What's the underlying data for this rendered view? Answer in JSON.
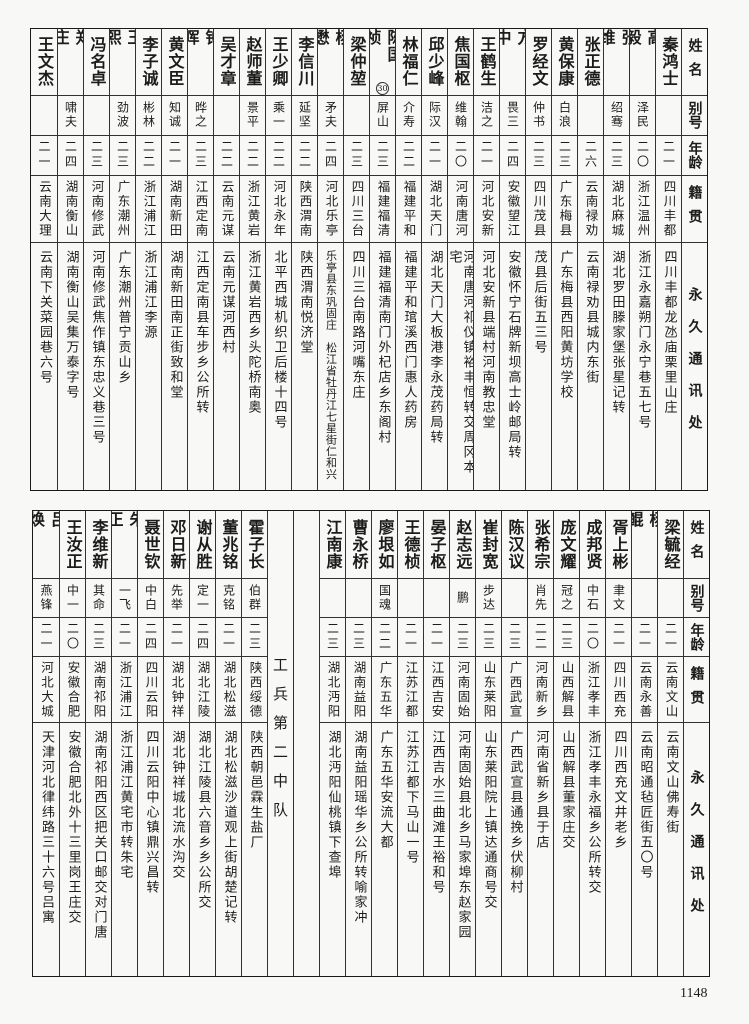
{
  "headers": {
    "name": "姓名",
    "alias": "别号",
    "age": "年龄",
    "origin": "籍贯",
    "address": "永久通讯处"
  },
  "upper": {
    "rows": [
      {
        "name": "秦鸿士",
        "alias": "",
        "age": "二一",
        "origin": "四川丰都",
        "address": "四川丰都龙氹庙栗里山庄"
      },
      {
        "name": "高毅",
        "alias": "泽民",
        "age": "二〇",
        "origin": "浙江温州",
        "address": "浙江永嘉朔门永宁巷五七号"
      },
      {
        "name": "张维",
        "alias": "绍骞",
        "age": "二三",
        "origin": "湖北麻城",
        "address": "湖北罗田滕家堡张星记转"
      },
      {
        "name": "张正德",
        "alias": "",
        "age": "二六",
        "origin": "云南禄劝",
        "address": "云南禄劝县城内东街"
      },
      {
        "name": "黄保康",
        "alias": "白浪",
        "age": "二三",
        "origin": "广东梅县",
        "address": "广东梅县西阳黄坊学校"
      },
      {
        "name": "罗经文",
        "alias": "仲书",
        "age": "二三",
        "origin": "四川茂县",
        "address": "茂县后街五三号"
      },
      {
        "name": "方中",
        "alias": "畏三",
        "age": "二四",
        "origin": "安徽望江",
        "address": "安徽怀宁石牌新坝高士岭邮局转"
      },
      {
        "name": "王鹤生",
        "alias": "洁之",
        "age": "二一",
        "origin": "河北安新",
        "address": "河北安新县端村河南教忠堂"
      },
      {
        "name": "焦国枢",
        "alias": "维翰",
        "age": "二〇",
        "origin": "河南唐河",
        "address": "河南唐河祁仪镇裕丰恒转交周冈本宅"
      },
      {
        "name": "邱少峰",
        "alias": "际汉",
        "age": "二一",
        "origin": "湖北天门",
        "address": "湖北天门大板港李永茂药局转"
      },
      {
        "name": "林福仁",
        "alias": "介寿",
        "age": "二二",
        "origin": "福建平和",
        "address": "福建平和琯溪西门惠人药房"
      },
      {
        "name": "陈国祯",
        "note": "30",
        "alias": "屏山",
        "age": "二三",
        "origin": "福建福清",
        "address": "福建福清南门外杞店乡东阁村"
      },
      {
        "name": "梁仲堃",
        "alias": "",
        "age": "二三",
        "origin": "四川三台",
        "address": "四川三台南路河嘴东庄"
      },
      {
        "name": "杨懋",
        "alias": "矛夫",
        "age": "二四",
        "origin": "河北乐亭",
        "address": "乐亭县东巩固庄　松江省牡丹江七星街仁和兴"
      },
      {
        "name": "李信川",
        "alias": "延坚",
        "age": "二二",
        "origin": "陕西渭南",
        "address": "陕西渭南悦济堂"
      },
      {
        "name": "王少卿",
        "alias": "乘一",
        "age": "二二",
        "origin": "河北永年",
        "address": "北平西城机织卫后楼十四号"
      },
      {
        "name": "赵师董",
        "alias": "景平",
        "age": "二二",
        "origin": "浙江黄岩",
        "address": "浙江黄岩西乡头陀桥南奥"
      },
      {
        "name": "吴才章",
        "alias": "",
        "age": "二二",
        "origin": "云南元谋",
        "address": "云南元谋河西村"
      },
      {
        "name": "钟晖",
        "alias": "晔之",
        "age": "二三",
        "origin": "江西定南",
        "address": "江西定南县车步乡公所转"
      },
      {
        "name": "黄文臣",
        "alias": "知诚",
        "age": "二一",
        "origin": "湖南新田",
        "address": "湖南新田南正街致和堂"
      },
      {
        "name": "李子诚",
        "alias": "彬林",
        "age": "二二",
        "origin": "浙江浦江",
        "address": "浙江浦江李源"
      },
      {
        "name": "王熙",
        "alias": "劲波",
        "age": "二三",
        "origin": "广东潮州",
        "address": "广东潮州普宁贡山乡"
      },
      {
        "name": "冯名卓",
        "alias": "",
        "age": "二三",
        "origin": "河南修武",
        "address": "河南修武焦作镇东忠义巷三号"
      },
      {
        "name": "郑庄",
        "alias": "啸夫",
        "age": "二四",
        "origin": "湖南衡山",
        "address": "湖南衡山吴集万泰字号"
      },
      {
        "name": "王文杰",
        "alias": "",
        "age": "二一",
        "origin": "云南大理",
        "address": "云南下关菜园巷六号"
      }
    ]
  },
  "lower": {
    "sections": [
      {
        "label": "",
        "rows": [
          {
            "name": "梁毓经",
            "alias": "",
            "age": "二一",
            "origin": "云南文山",
            "address": "云南文山佛寿街"
          },
          {
            "name": "杨鲲",
            "alias": "",
            "age": "二一",
            "origin": "云南永善",
            "address": "云南昭通毡匠街五〇号"
          },
          {
            "name": "胥上彬",
            "alias": "聿文",
            "age": "二一",
            "origin": "四川西充",
            "address": "四川西充文井老乡"
          },
          {
            "name": "成邦贤",
            "alias": "中石",
            "age": "二〇",
            "origin": "浙江孝丰",
            "address": "浙江孝丰永福乡公所转交"
          },
          {
            "name": "庞文耀",
            "alias": "冠之",
            "age": "二三",
            "origin": "山西解县",
            "address": "山西解县董家庄交"
          },
          {
            "name": "张希宗",
            "alias": "肖先",
            "age": "二二",
            "origin": "河南新乡",
            "address": "河南省新乡县于店"
          },
          {
            "name": "陈汉议",
            "alias": "",
            "age": "二三",
            "origin": "广西武宣",
            "address": "广西武宣县通挽乡伏柳村"
          },
          {
            "name": "崔封宽",
            "alias": "步达",
            "age": "二三",
            "origin": "山东莱阳",
            "address": "山东莱阳院上镇达通商号交"
          },
          {
            "name": "赵志远",
            "alias": "鹏",
            "age": "二三",
            "origin": "河南固始",
            "address": "河南固始县北乡马家埠东赵家园"
          },
          {
            "name": "晏子枢",
            "alias": "",
            "age": "二一",
            "origin": "江西吉安",
            "address": "江西吉水三曲滩王裕和号"
          },
          {
            "name": "王德桢",
            "alias": "",
            "age": "二一",
            "origin": "江苏江都",
            "address": "江苏江都下马山一号"
          },
          {
            "name": "廖垠如",
            "alias": "国魂",
            "age": "二二",
            "origin": "广东五华",
            "address": "广东五华安流大都"
          },
          {
            "name": "曹永桥",
            "alias": "",
            "age": "二三",
            "origin": "湖南益阳",
            "address": "湖南益阳瑶华乡公所转喻家冲"
          },
          {
            "name": "江南康",
            "alias": "",
            "age": "二三",
            "origin": "湖北沔阳",
            "address": "湖北沔阳仙桃镇下查埠"
          }
        ]
      },
      {
        "label": "工兵第二中队",
        "rows": [
          {
            "name": "霍子长",
            "alias": "伯群",
            "age": "二三",
            "origin": "陕西绥德",
            "address": "陕西朝邑霖生盐厂"
          },
          {
            "name": "董兆铭",
            "alias": "克铭",
            "age": "二一",
            "origin": "湖北松滋",
            "address": "湖北松滋沙道观上街胡楚记转"
          },
          {
            "name": "谢从胜",
            "alias": "定一",
            "age": "二四",
            "origin": "湖北江陵",
            "address": "湖北江陵县六音乡乡公所交"
          },
          {
            "name": "邓日新",
            "alias": "先举",
            "age": "二一",
            "origin": "湖北钟祥",
            "address": "湖北钟祥城北流水沟交"
          },
          {
            "name": "聂世钦",
            "alias": "中白",
            "age": "二四",
            "origin": "四川云阳",
            "address": "四川云阳中心镇鼎兴昌转"
          },
          {
            "name": "朱正",
            "alias": "一飞",
            "age": "二一",
            "origin": "浙江浦江",
            "address": "浙江浦江黄宅市转朱宅"
          },
          {
            "name": "李维新",
            "alias": "其命",
            "age": "二三",
            "origin": "湖南祁阳",
            "address": "湖南祁阳西区把关口邮交对门唐"
          },
          {
            "name": "王汝正",
            "alias": "中一",
            "age": "二〇",
            "origin": "安徽合肥",
            "address": "安徽合肥北外十三里岗王庄交"
          },
          {
            "name": "吕焕",
            "alias": "燕锋",
            "age": "二一",
            "origin": "河北大城",
            "address": "天津河北律纬路三十六号吕寓"
          }
        ]
      }
    ]
  },
  "page_number": "1148"
}
